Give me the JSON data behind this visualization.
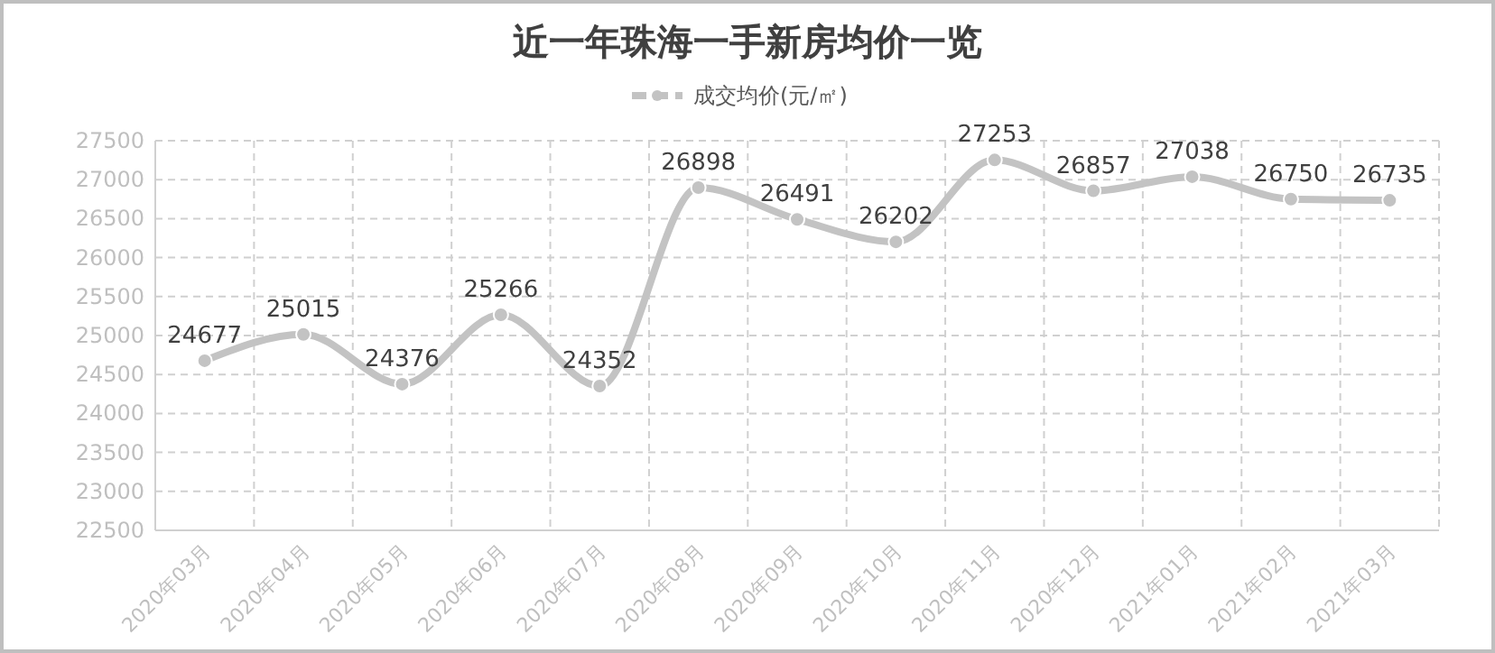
{
  "chart_data": {
    "type": "line",
    "title": "近一年珠海一手新房均价一览",
    "categories": [
      "2020年03月",
      "2020年04月",
      "2020年05月",
      "2020年06月",
      "2020年07月",
      "2020年08月",
      "2020年09月",
      "2020年10月",
      "2020年11月",
      "2020年12月",
      "2021年01月",
      "2021年02月",
      "2021年03月"
    ],
    "series": [
      {
        "name": "成交均价(元/㎡)",
        "color": "#c3c3c3",
        "values": [
          24677,
          25015,
          24376,
          25266,
          24352,
          26898,
          26491,
          26202,
          27253,
          26857,
          27038,
          26750,
          26735
        ]
      }
    ],
    "ylim": [
      22500,
      27500
    ],
    "yticks": [
      22500,
      23000,
      23500,
      24000,
      24500,
      25000,
      25500,
      26000,
      26500,
      27000,
      27500
    ],
    "grid": true,
    "legend": "top",
    "marker": "circle",
    "line_style": "solid",
    "data_labels": true
  }
}
